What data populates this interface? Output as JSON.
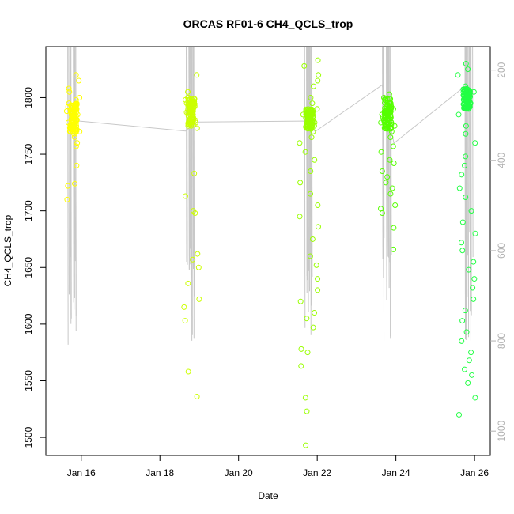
{
  "chart_data": {
    "type": "scatter",
    "title": "ORCAS RF01-6 CH4_QCLS_trop",
    "xlabel": "Date",
    "ylabel": "CH4_QCLS_trop",
    "x_ticks": [
      "Jan 16",
      "Jan 18",
      "Jan 20",
      "Jan 22",
      "Jan 24",
      "Jan 26"
    ],
    "x_tick_days": [
      16,
      18,
      20,
      22,
      24,
      26
    ],
    "xlim": [
      15.1,
      26.4
    ],
    "ylim": [
      1484,
      1845
    ],
    "y_ticks": [
      1500,
      1550,
      1600,
      1650,
      1700,
      1750,
      1800
    ],
    "y2_label": "",
    "y2_ticks": [
      200,
      400,
      600,
      800,
      1000
    ],
    "y2_lim": [
      1054,
      148
    ],
    "grid": false,
    "legend": "none",
    "marker_colors": {
      "flight1": "#ffff00",
      "flight2": "#ccff00",
      "flight3": "#99ff00",
      "flight4": "#55ff00",
      "flight5": "#22ff44"
    },
    "pressure_line_color": "#c8c8c8",
    "flights": [
      {
        "center_day": 15.8,
        "span": 0.35,
        "ch4_core": [
          1770,
          1795
        ],
        "ch4_values": [
          1820,
          1815,
          1808,
          1805,
          1800,
          1798,
          1795,
          1792,
          1790,
          1788,
          1785,
          1783,
          1780,
          1778,
          1775,
          1772,
          1770,
          1768,
          1765,
          1760,
          1757,
          1740,
          1724,
          1722,
          1710
        ]
      },
      {
        "center_day": 18.8,
        "span": 0.4,
        "ch4_core": [
          1775,
          1800
        ],
        "ch4_values": [
          1820,
          1805,
          1800,
          1798,
          1795,
          1790,
          1787,
          1785,
          1782,
          1780,
          1778,
          1775,
          1773,
          1733,
          1713,
          1700,
          1698,
          1662,
          1657,
          1650,
          1636,
          1622,
          1615,
          1603,
          1558,
          1536
        ]
      },
      {
        "center_day": 21.8,
        "span": 0.5,
        "ch4_core": [
          1772,
          1790
        ],
        "ch4_values": [
          1833,
          1828,
          1820,
          1815,
          1810,
          1800,
          1795,
          1790,
          1785,
          1782,
          1780,
          1778,
          1775,
          1770,
          1765,
          1760,
          1752,
          1745,
          1735,
          1725,
          1715,
          1705,
          1695,
          1686,
          1675,
          1660,
          1652,
          1640,
          1630,
          1620,
          1610,
          1605,
          1597,
          1578,
          1575,
          1563,
          1535,
          1523,
          1493
        ]
      },
      {
        "center_day": 23.8,
        "span": 0.4,
        "ch4_core": [
          1772,
          1800
        ],
        "ch4_values": [
          1803,
          1800,
          1797,
          1795,
          1790,
          1787,
          1785,
          1783,
          1780,
          1778,
          1775,
          1770,
          1765,
          1757,
          1752,
          1745,
          1742,
          1735,
          1730,
          1725,
          1720,
          1715,
          1705,
          1702,
          1698,
          1685,
          1666
        ]
      },
      {
        "center_day": 25.8,
        "span": 0.45,
        "ch4_core": [
          1790,
          1808
        ],
        "ch4_values": [
          1830,
          1825,
          1820,
          1810,
          1805,
          1800,
          1795,
          1790,
          1785,
          1775,
          1768,
          1760,
          1748,
          1740,
          1732,
          1720,
          1712,
          1700,
          1690,
          1680,
          1672,
          1665,
          1655,
          1648,
          1640,
          1632,
          1622,
          1612,
          1603,
          1593,
          1585,
          1575,
          1568,
          1560,
          1555,
          1548,
          1535,
          1520
        ]
      }
    ],
    "pressure_profile": [
      {
        "day": 15.7,
        "hpa_range": [
          148,
          830
        ]
      },
      {
        "day": 18.7,
        "hpa_range": [
          148,
          820
        ]
      },
      {
        "day": 21.7,
        "hpa_range": [
          148,
          820
        ]
      },
      {
        "day": 23.7,
        "hpa_range": [
          148,
          820
        ]
      },
      {
        "day": 25.8,
        "hpa_range": [
          148,
          820
        ]
      }
    ],
    "transit_line": [
      {
        "day": 15.85,
        "hpa": 312
      },
      {
        "day": 18.65,
        "hpa": 335
      },
      {
        "day": 18.95,
        "hpa": 315
      },
      {
        "day": 21.65,
        "hpa": 313
      },
      {
        "day": 21.95,
        "hpa": 336
      },
      {
        "day": 23.65,
        "hpa": 233
      },
      {
        "day": 23.95,
        "hpa": 362
      },
      {
        "day": 25.65,
        "hpa": 243
      }
    ]
  }
}
